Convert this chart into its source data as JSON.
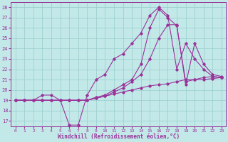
{
  "xlabel": "Windchill (Refroidissement éolien,°C)",
  "bg_color": "#c2e8e8",
  "line_color": "#993399",
  "grid_color": "#99cccc",
  "xlim": [
    -0.5,
    23.5
  ],
  "ylim": [
    16.5,
    28.5
  ],
  "yticks": [
    17,
    18,
    19,
    20,
    21,
    22,
    23,
    24,
    25,
    26,
    27,
    28
  ],
  "xticks": [
    0,
    1,
    2,
    3,
    4,
    5,
    6,
    7,
    8,
    9,
    10,
    11,
    12,
    13,
    14,
    15,
    16,
    17,
    18,
    19,
    20,
    21,
    22,
    23
  ],
  "lines": [
    {
      "x": [
        0,
        1,
        2,
        3,
        4,
        5,
        6,
        7,
        8,
        9,
        10,
        11,
        12,
        13,
        14,
        15,
        16,
        17,
        18,
        19,
        20,
        21,
        22,
        23
      ],
      "y": [
        19,
        19,
        19,
        19.5,
        19.5,
        19,
        16.6,
        16.6,
        19.5,
        21,
        21.5,
        23,
        23.5,
        24.5,
        25.5,
        27.2,
        28,
        27.2,
        22,
        24.5,
        23,
        22,
        21.3,
        21.2
      ]
    },
    {
      "x": [
        0,
        1,
        2,
        3,
        4,
        5,
        6,
        7,
        8,
        9,
        10,
        11,
        12,
        13,
        14,
        15,
        16,
        17,
        18,
        19,
        20,
        21,
        22,
        23
      ],
      "y": [
        19,
        19,
        19,
        19,
        19,
        19,
        19,
        19,
        19,
        19.3,
        19.5,
        20,
        20.5,
        21,
        22.5,
        26,
        27.8,
        27,
        26.2,
        20.8,
        21,
        21.2,
        21.3,
        21.2
      ]
    },
    {
      "x": [
        0,
        1,
        2,
        3,
        4,
        5,
        6,
        7,
        8,
        9,
        10,
        11,
        12,
        13,
        14,
        15,
        16,
        17,
        18,
        19,
        20,
        21,
        22,
        23
      ],
      "y": [
        19,
        19,
        19,
        19,
        19,
        19,
        19,
        19,
        19,
        19.2,
        19.4,
        19.8,
        20.2,
        20.8,
        21.5,
        23,
        25,
        26.3,
        26.3,
        20.5,
        24.5,
        22.5,
        21.5,
        21.3
      ]
    },
    {
      "x": [
        0,
        1,
        2,
        3,
        4,
        5,
        6,
        7,
        8,
        9,
        10,
        11,
        12,
        13,
        14,
        15,
        16,
        17,
        18,
        19,
        20,
        21,
        22,
        23
      ],
      "y": [
        19,
        19,
        19,
        19,
        19,
        19,
        19,
        19,
        19,
        19.2,
        19.4,
        19.6,
        19.8,
        20.0,
        20.2,
        20.4,
        20.5,
        20.6,
        20.8,
        21.0,
        21.0,
        21.0,
        21.1,
        21.2
      ]
    }
  ]
}
